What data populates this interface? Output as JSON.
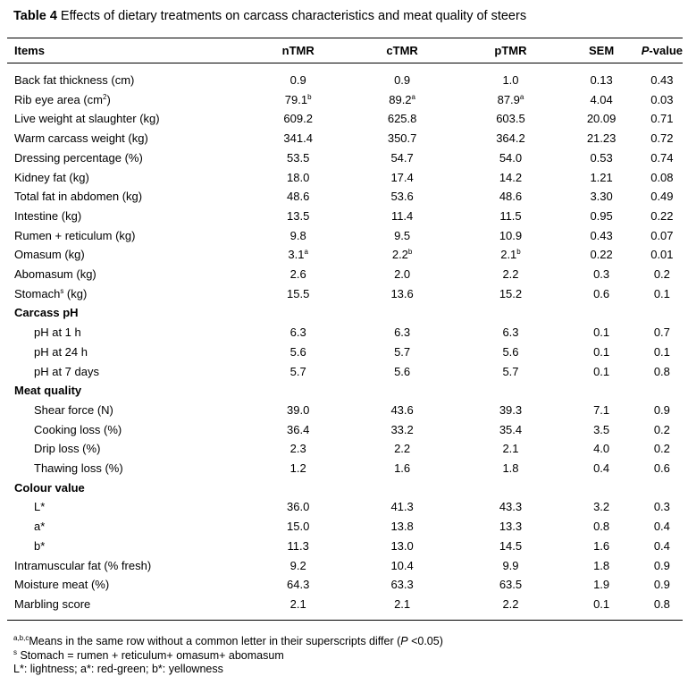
{
  "caption": {
    "label": "Table 4",
    "text": " Effects of dietary treatments on carcass characteristics and meat quality of steers"
  },
  "header": {
    "items": "Items",
    "ntmr": "nTMR",
    "ctmr": "cTMR",
    "ptmr": "pTMR",
    "sem": "SEM",
    "pvalue_p": "P",
    "pvalue_rest": "-value"
  },
  "rows": [
    {
      "item": "Back fat thickness (cm)",
      "n": "0.9",
      "c": "0.9",
      "p": "1.0",
      "sem": "0.13",
      "pv": "0.43"
    },
    {
      "item_pre": "Rib eye area (cm",
      "item_sup": "2",
      "item_post": ")",
      "n": "79.1",
      "n_sup": "b",
      "c": "89.2",
      "c_sup": "a",
      "p": "87.9",
      "p_sup": "a",
      "sem": "4.04",
      "pv": "0.03"
    },
    {
      "item": "Live weight at slaughter (kg)",
      "n": "609.2",
      "c": "625.8",
      "p": "603.5",
      "sem": "20.09",
      "pv": "0.71"
    },
    {
      "item": "Warm carcass weight (kg)",
      "n": "341.4",
      "c": "350.7",
      "p": "364.2",
      "sem": "21.23",
      "pv": "0.72"
    },
    {
      "item": "Dressing percentage (%)",
      "n": "53.5",
      "c": "54.7",
      "p": "54.0",
      "sem": "0.53",
      "pv": "0.74"
    },
    {
      "item": "Kidney fat (kg)",
      "n": "18.0",
      "c": "17.4",
      "p": "14.2",
      "sem": "1.21",
      "pv": "0.08"
    },
    {
      "item": "Total fat in abdomen (kg)",
      "n": "48.6",
      "c": "53.6",
      "p": "48.6",
      "sem": "3.30",
      "pv": "0.49"
    },
    {
      "item": "Intestine (kg)",
      "n": "13.5",
      "c": "11.4",
      "p": "11.5",
      "sem": "0.95",
      "pv": "0.22"
    },
    {
      "item": "Rumen + reticulum (kg)",
      "n": "9.8",
      "c": "9.5",
      "p": "10.9",
      "sem": "0.43",
      "pv": "0.07"
    },
    {
      "item": "Omasum (kg)",
      "n": "3.1",
      "n_sup": "a",
      "c": "2.2",
      "c_sup": "b",
      "p": "2.1",
      "p_sup": "b",
      "sem": "0.22",
      "pv": "0.01"
    },
    {
      "item": "Abomasum (kg)",
      "n": "2.6",
      "c": "2.0",
      "p": "2.2",
      "sem": "0.3",
      "pv": "0.2"
    },
    {
      "item_pre": "Stomach",
      "item_sup": "s",
      "item_post": " (kg)",
      "n": "15.5",
      "c": "13.6",
      "p": "15.2",
      "sem": "0.6",
      "pv": "0.1"
    },
    {
      "section": "Carcass pH"
    },
    {
      "item": "pH at 1 h",
      "sub": true,
      "n": "6.3",
      "c": "6.3",
      "p": "6.3",
      "sem": "0.1",
      "pv": "0.7"
    },
    {
      "item": "pH at 24 h",
      "sub": true,
      "n": "5.6",
      "c": "5.7",
      "p": "5.6",
      "sem": "0.1",
      "pv": "0.1"
    },
    {
      "item": "pH at 7 days",
      "sub": true,
      "n": "5.7",
      "c": "5.6",
      "p": "5.7",
      "sem": "0.1",
      "pv": "0.8"
    },
    {
      "section": "Meat quality"
    },
    {
      "item": "Shear force (N)",
      "sub": true,
      "n": "39.0",
      "c": "43.6",
      "p": "39.3",
      "sem": "7.1",
      "pv": "0.9"
    },
    {
      "item": "Cooking loss (%)",
      "sub": true,
      "n": "36.4",
      "c": "33.2",
      "p": "35.4",
      "sem": "3.5",
      "pv": "0.2"
    },
    {
      "item": "Drip loss (%)",
      "sub": true,
      "n": "2.3",
      "c": "2.2",
      "p": "2.1",
      "sem": "4.0",
      "pv": "0.2"
    },
    {
      "item": "Thawing loss (%)",
      "sub": true,
      "n": "1.2",
      "c": "1.6",
      "p": "1.8",
      "sem": "0.4",
      "pv": "0.6"
    },
    {
      "section": "Colour value"
    },
    {
      "item": "L*",
      "sub": true,
      "n": "36.0",
      "c": "41.3",
      "p": "43.3",
      "sem": "3.2",
      "pv": "0.3"
    },
    {
      "item": "a*",
      "sub": true,
      "n": "15.0",
      "c": "13.8",
      "p": "13.3",
      "sem": "0.8",
      "pv": "0.4"
    },
    {
      "item": "b*",
      "sub": true,
      "n": "11.3",
      "c": "13.0",
      "p": "14.5",
      "sem": "1.6",
      "pv": "0.4"
    },
    {
      "item": "Intramuscular fat (% fresh)",
      "n": "9.2",
      "c": "10.4",
      "p": "9.9",
      "sem": "1.8",
      "pv": "0.9"
    },
    {
      "item": "Moisture meat (%)",
      "n": "64.3",
      "c": "63.3",
      "p": "63.5",
      "sem": "1.9",
      "pv": "0.9"
    },
    {
      "item": "Marbling score",
      "n": "2.1",
      "c": "2.1",
      "p": "2.2",
      "sem": "0.1",
      "pv": "0.8"
    }
  ],
  "footnotes": {
    "n1_sup": "a,b,c",
    "n1_pre": "Means in the same row without a common letter in their superscripts differ (",
    "n1_p": "P",
    "n1_post": " <0.05)",
    "n2_sup": "s",
    "n2_text": " Stomach = rumen + reticulum+ omasum+ abomasum",
    "n3_text": "L*: lightness; a*: red-green; b*: yellowness"
  }
}
